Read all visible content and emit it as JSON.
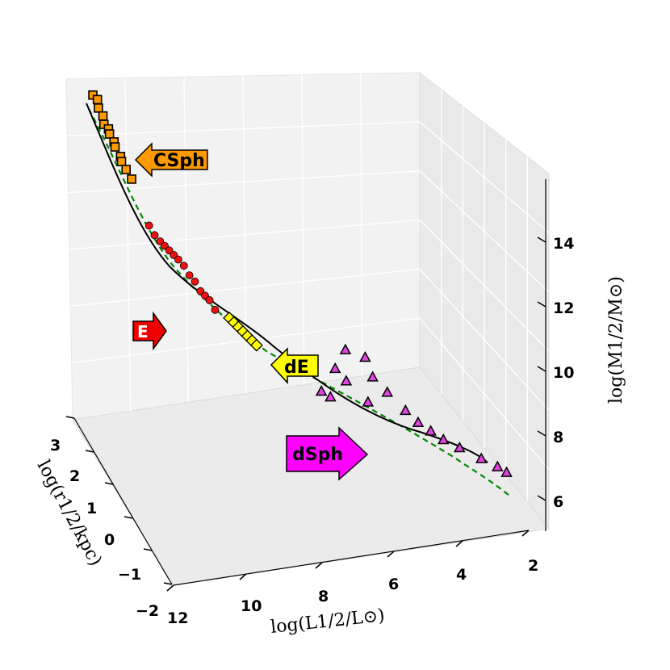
{
  "chart_data": {
    "type": "scatter",
    "projection": "3d",
    "grid": true,
    "axes": {
      "x": {
        "label": "log(L1/2/L⊙)",
        "ticks": [
          "12",
          "10",
          "8",
          "6",
          "4",
          "2"
        ],
        "range": [
          12,
          2
        ]
      },
      "y": {
        "label": "log(r1/2/kpc)",
        "ticks": [
          "3",
          "2",
          "1",
          "0",
          "−1",
          "−2"
        ],
        "range": [
          3,
          -2
        ]
      },
      "z": {
        "label": "log(M1/2/M⊙)",
        "ticks": [
          "6",
          "8",
          "10",
          "12",
          "14"
        ],
        "range": [
          5,
          15.5
        ]
      }
    },
    "annotations": [
      {
        "text": "CSph",
        "color": "#ff9900",
        "direction": "left"
      },
      {
        "text": "E",
        "color": "#ee0000",
        "direction": "right"
      },
      {
        "text": "dE",
        "color": "#ffff00",
        "direction": "left"
      },
      {
        "text": "dSph",
        "color": "#ff00ff",
        "direction": "right"
      }
    ],
    "series": [
      {
        "group": "CSph",
        "marker": "square",
        "color": "#ff9900",
        "points": [
          [
            11.7,
            2.6,
            14.9
          ],
          [
            11.6,
            2.55,
            14.8
          ],
          [
            11.6,
            2.5,
            14.6
          ],
          [
            11.5,
            2.45,
            14.4
          ],
          [
            11.5,
            2.4,
            14.2
          ],
          [
            11.4,
            2.35,
            14.1
          ],
          [
            11.4,
            2.3,
            14.0
          ],
          [
            11.3,
            2.25,
            13.8
          ],
          [
            11.3,
            2.2,
            13.7
          ],
          [
            11.2,
            2.1,
            13.5
          ],
          [
            11.2,
            2.05,
            13.4
          ],
          [
            11.1,
            2.0,
            13.2
          ],
          [
            11.0,
            1.9,
            13.0
          ]
        ]
      },
      {
        "group": "E",
        "marker": "circle",
        "color": "#ee1111",
        "points": [
          [
            10.9,
            1.2,
            12.3
          ],
          [
            10.8,
            1.1,
            12.1
          ],
          [
            10.7,
            1.0,
            12.0
          ],
          [
            10.6,
            0.95,
            11.9
          ],
          [
            10.5,
            0.9,
            11.8
          ],
          [
            10.4,
            0.85,
            11.7
          ],
          [
            10.3,
            0.8,
            11.6
          ],
          [
            10.2,
            0.7,
            11.5
          ],
          [
            10.1,
            0.6,
            11.3
          ],
          [
            10.0,
            0.5,
            11.2
          ],
          [
            9.9,
            0.4,
            11.0
          ],
          [
            9.8,
            0.35,
            10.9
          ],
          [
            9.7,
            0.3,
            10.8
          ],
          [
            9.6,
            0.2,
            10.6
          ]
        ]
      },
      {
        "group": "dE",
        "marker": "diamond",
        "color": "#ffff00",
        "points": [
          [
            9.2,
            0.2,
            10.3
          ],
          [
            9.1,
            0.15,
            10.2
          ],
          [
            9.0,
            0.1,
            10.1
          ],
          [
            8.9,
            0.05,
            10.0
          ],
          [
            8.8,
            0.0,
            9.9
          ],
          [
            8.7,
            -0.05,
            9.8
          ],
          [
            8.6,
            -0.1,
            9.7
          ]
        ]
      },
      {
        "group": "dSph",
        "marker": "triangle",
        "color": "#dd44dd",
        "points": [
          [
            7.0,
            -0.5,
            8.5
          ],
          [
            6.8,
            -0.6,
            8.4
          ],
          [
            6.5,
            -0.3,
            8.9
          ],
          [
            6.3,
            -0.5,
            8.7
          ],
          [
            5.8,
            -0.7,
            8.2
          ],
          [
            5.5,
            -0.4,
            8.6
          ],
          [
            5.2,
            -0.6,
            8.3
          ],
          [
            4.8,
            -0.8,
            7.9
          ],
          [
            4.5,
            -0.9,
            7.6
          ],
          [
            4.2,
            -1.0,
            7.4
          ],
          [
            3.9,
            -1.1,
            7.2
          ],
          [
            3.5,
            -1.2,
            7.0
          ],
          [
            3.0,
            -1.4,
            6.8
          ],
          [
            2.6,
            -1.5,
            6.6
          ],
          [
            2.4,
            -1.6,
            6.5
          ],
          [
            5.6,
            -0.2,
            9.0
          ],
          [
            6.1,
            -0.1,
            9.2
          ]
        ]
      }
    ],
    "lines": [
      {
        "name": "fit",
        "style": "solid",
        "color": "#000000"
      },
      {
        "name": "model",
        "style": "dashed",
        "color": "#008800"
      }
    ]
  }
}
